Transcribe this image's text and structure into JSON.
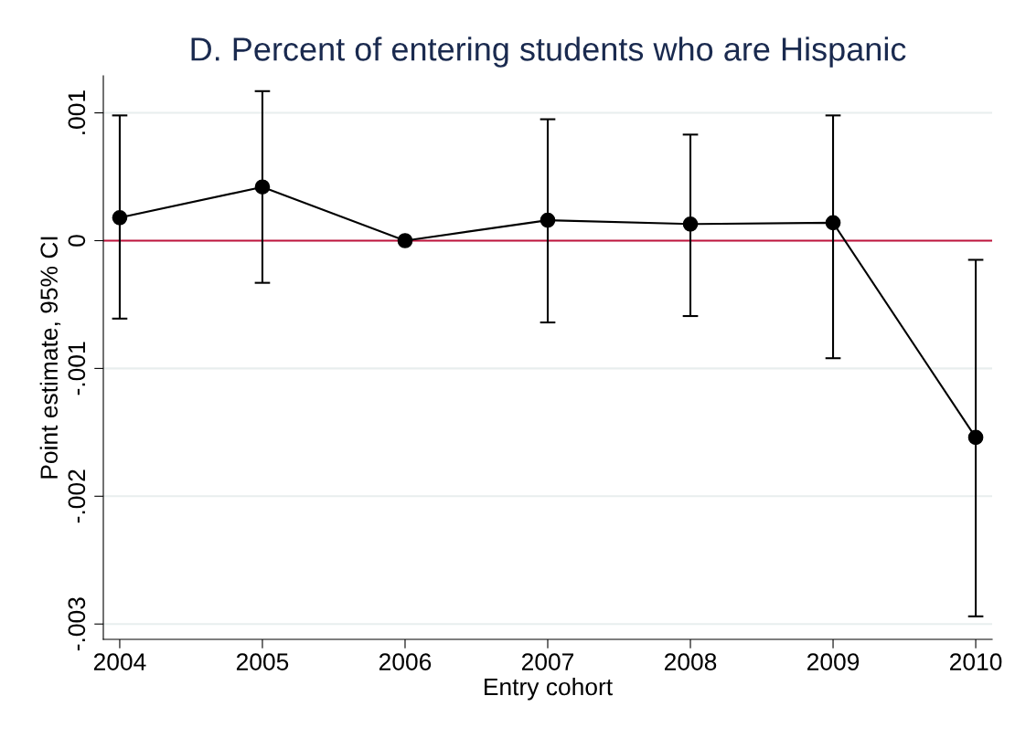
{
  "chart_data": {
    "type": "line",
    "title": "D. Percent of entering students who are Hispanic",
    "xlabel": "Entry cohort",
    "ylabel": "Point estimate, 95% CI",
    "x": [
      2004,
      2005,
      2006,
      2007,
      2008,
      2009,
      2010
    ],
    "series": [
      {
        "color": "#000000",
        "values": [
          0.00018,
          0.00042,
          0.0,
          0.00016,
          0.00013,
          0.00014,
          -0.00154
        ],
        "errors": [
          [
            -0.00061,
            0.00098
          ],
          [
            -0.00033,
            0.00117
          ],
          null,
          [
            -0.00064,
            0.00095
          ],
          [
            -0.00059,
            0.00083
          ],
          [
            -0.00092,
            0.00098
          ],
          [
            -0.00294,
            -0.00015
          ]
        ]
      }
    ],
    "xlim": [
      2003.885,
      2010.115
    ],
    "xticks": [
      2004,
      2005,
      2006,
      2007,
      2008,
      2009,
      2010
    ],
    "ylim": [
      -0.00312,
      0.00129
    ],
    "yticks": [
      {
        "value": -0.003,
        "label": "-.003"
      },
      {
        "value": -0.002,
        "label": "-.002"
      },
      {
        "value": -0.001,
        "label": "-.001"
      },
      {
        "value": 0,
        "label": "0"
      },
      {
        "value": 0.001,
        "label": ".001"
      }
    ],
    "ref_lines": [
      {
        "axis": "y",
        "value": 0,
        "color": "#c0143c"
      }
    ],
    "grid": "y",
    "marker": "circle",
    "line_style": "solid"
  }
}
